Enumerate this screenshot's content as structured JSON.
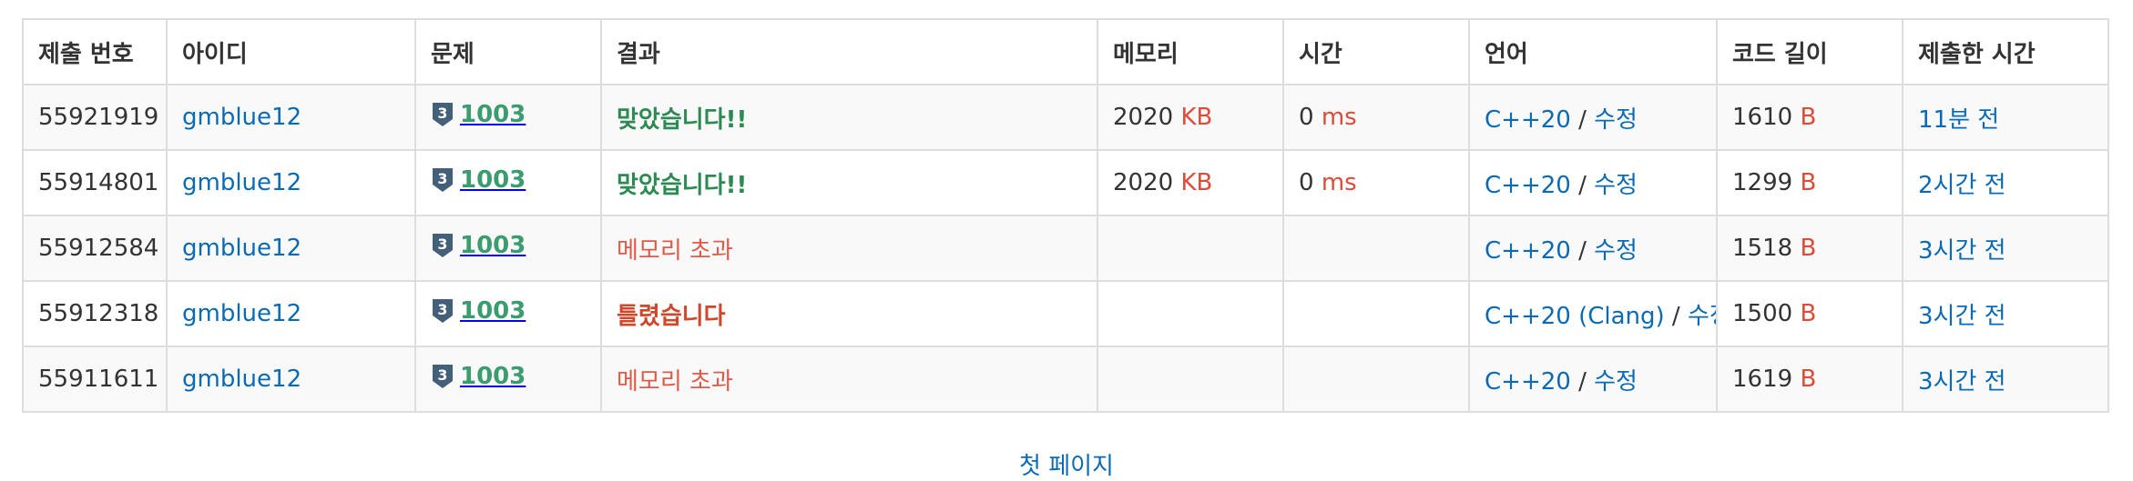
{
  "table": {
    "headers": [
      "제출 번호",
      "아이디",
      "문제",
      "결과",
      "메모리",
      "시간",
      "언어",
      "코드 길이",
      "제출한 시간"
    ],
    "rows": [
      {
        "id": "55921919",
        "user": "gmblue12",
        "problem": "1003",
        "result": "맞았습니다!!",
        "result_kind": "ac",
        "memory": "2020",
        "memory_unit": "KB",
        "time": "0",
        "time_unit": "ms",
        "lang": "C++20",
        "edit": "수정",
        "code_len": "1610",
        "code_unit": "B",
        "submitted": "11분 전"
      },
      {
        "id": "55914801",
        "user": "gmblue12",
        "problem": "1003",
        "result": "맞았습니다!!",
        "result_kind": "ac",
        "memory": "2020",
        "memory_unit": "KB",
        "time": "0",
        "time_unit": "ms",
        "lang": "C++20",
        "edit": "수정",
        "code_len": "1299",
        "code_unit": "B",
        "submitted": "2시간 전"
      },
      {
        "id": "55912584",
        "user": "gmblue12",
        "problem": "1003",
        "result": "메모리 초과",
        "result_kind": "mle",
        "memory": "",
        "memory_unit": "",
        "time": "",
        "time_unit": "",
        "lang": "C++20",
        "edit": "수정",
        "code_len": "1518",
        "code_unit": "B",
        "submitted": "3시간 전"
      },
      {
        "id": "55912318",
        "user": "gmblue12",
        "problem": "1003",
        "result": "틀렸습니다",
        "result_kind": "wa",
        "memory": "",
        "memory_unit": "",
        "time": "",
        "time_unit": "",
        "lang": "C++20 (Clang)",
        "edit": "수정",
        "code_len": "1500",
        "code_unit": "B",
        "submitted": "3시간 전"
      },
      {
        "id": "55911611",
        "user": "gmblue12",
        "problem": "1003",
        "result": "메모리 초과",
        "result_kind": "mle",
        "memory": "",
        "memory_unit": "",
        "time": "",
        "time_unit": "",
        "lang": "C++20",
        "edit": "수정",
        "code_len": "1619",
        "code_unit": "B",
        "submitted": "3시간 전"
      }
    ],
    "separator": "/",
    "tier_icon": "silver-3-tier-icon",
    "tier_digit": "3"
  },
  "pager": {
    "first_page": "첫 페이지"
  },
  "colors": {
    "link": "#0b6ab5",
    "unit": "#dd4b39",
    "accepted": "#2d8a52",
    "problem": "#3b9d6f",
    "memory_exceeded": "#e05a47",
    "wrong": "#d0482c",
    "tier": "#435f7a"
  }
}
